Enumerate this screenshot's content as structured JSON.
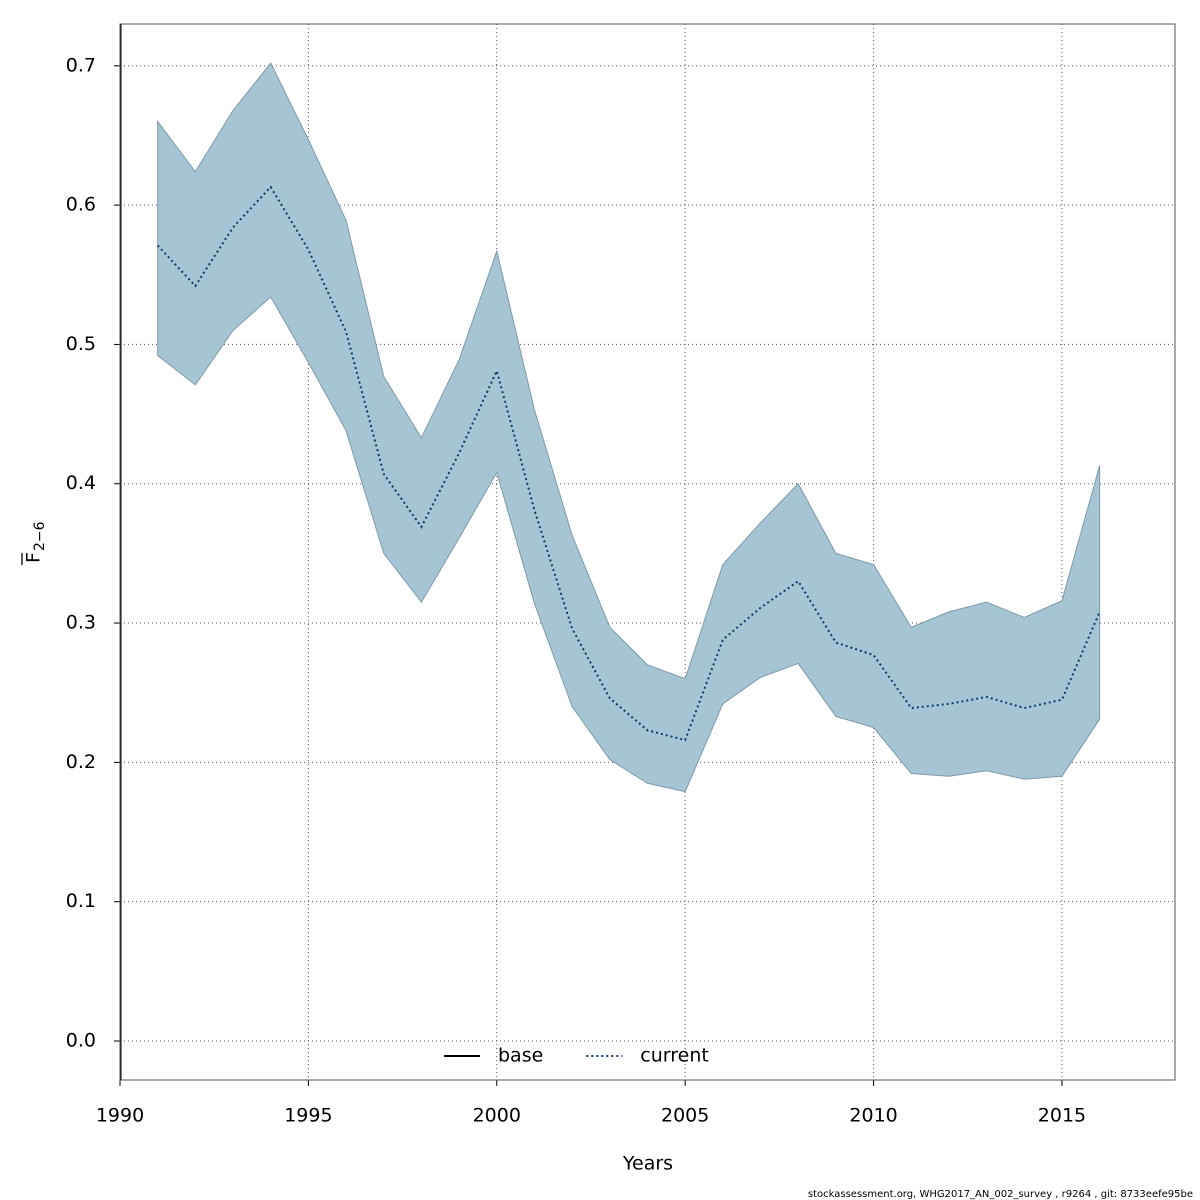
{
  "chart_data": {
    "type": "line",
    "x_label": "Years",
    "y_label": "F",
    "y_label_subscript": "2−6",
    "footnote": "stockassessment.org, WHG2017_AN_002_survey  , r9264 , git: 8733eefe95be",
    "x": [
      1991,
      1992,
      1993,
      1994,
      1995,
      1996,
      1997,
      1998,
      1999,
      2000,
      2001,
      2002,
      2003,
      2004,
      2005,
      2006,
      2007,
      2008,
      2009,
      2010,
      2011,
      2012,
      2013,
      2014,
      2015,
      2016
    ],
    "series": [
      {
        "name": "current",
        "color": "#0a3d6b",
        "band_color": "#a5c4d4",
        "values": [
          0.571,
          0.542,
          0.584,
          0.613,
          0.568,
          0.509,
          0.407,
          0.369,
          0.422,
          0.481,
          0.381,
          0.296,
          0.246,
          0.223,
          0.216,
          0.288,
          0.311,
          0.33,
          0.286,
          0.277,
          0.239,
          0.242,
          0.247,
          0.239,
          0.245,
          0.308
        ],
        "upper": [
          0.66,
          0.624,
          0.668,
          0.702,
          0.647,
          0.589,
          0.477,
          0.433,
          0.489,
          0.567,
          0.453,
          0.363,
          0.297,
          0.27,
          0.26,
          0.342,
          0.372,
          0.4,
          0.35,
          0.342,
          0.297,
          0.308,
          0.315,
          0.304,
          0.316,
          0.413
        ],
        "lower": [
          0.492,
          0.471,
          0.51,
          0.534,
          0.487,
          0.438,
          0.35,
          0.315,
          0.361,
          0.408,
          0.314,
          0.24,
          0.202,
          0.185,
          0.179,
          0.242,
          0.261,
          0.271,
          0.233,
          0.225,
          0.192,
          0.19,
          0.194,
          0.188,
          0.19,
          0.231
        ]
      }
    ],
    "legend": [
      {
        "name": "base",
        "color": "#000000",
        "dash": "solid"
      },
      {
        "name": "current",
        "color": "#0a3d6b",
        "dash": "dotted"
      }
    ],
    "legend_position": "bottom",
    "xlim": [
      1990,
      2018
    ],
    "ylim": [
      -0.028,
      0.73
    ],
    "xticks": [
      1990,
      1995,
      2000,
      2005,
      2010,
      2015
    ],
    "yticks": [
      {
        "value": 0,
        "label": "0.0"
      },
      0.1,
      0.2,
      0.3,
      0.4,
      0.5,
      0.6,
      0.7
    ],
    "grid": true
  }
}
